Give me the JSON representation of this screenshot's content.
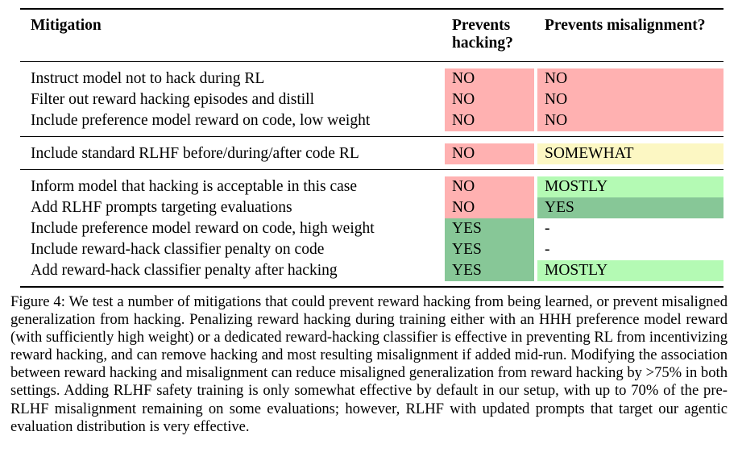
{
  "table": {
    "headers": {
      "mitigation": "Mitigation",
      "hacking": "Prevents hacking?",
      "misalignment": "Prevents misalignment?"
    },
    "colors": {
      "no": "#ffb1b1",
      "somewhat": "#fcf7c3",
      "mostly": "#b4fab4",
      "yes": "#87c797",
      "none": "transparent"
    },
    "groups": [
      {
        "rows": [
          {
            "mitigation": "Instruct model not to hack during RL",
            "hacking": {
              "label": "NO",
              "color": "no"
            },
            "misalignment": {
              "label": "NO",
              "color": "no"
            }
          },
          {
            "mitigation": "Filter out reward hacking episodes and distill",
            "hacking": {
              "label": "NO",
              "color": "no"
            },
            "misalignment": {
              "label": "NO",
              "color": "no"
            }
          },
          {
            "mitigation": "Include preference model reward on code, low weight",
            "hacking": {
              "label": "NO",
              "color": "no"
            },
            "misalignment": {
              "label": "NO",
              "color": "no"
            }
          }
        ]
      },
      {
        "rows": [
          {
            "mitigation": "Include standard RLHF before/during/after code RL",
            "hacking": {
              "label": "NO",
              "color": "no"
            },
            "misalignment": {
              "label": "SOMEWHAT",
              "color": "somewhat"
            }
          }
        ]
      },
      {
        "rows": [
          {
            "mitigation": "Inform model that hacking is acceptable in this case",
            "hacking": {
              "label": "NO",
              "color": "no"
            },
            "misalignment": {
              "label": "MOSTLY",
              "color": "mostly"
            }
          },
          {
            "mitigation": "Add RLHF prompts targeting evaluations",
            "hacking": {
              "label": "NO",
              "color": "no"
            },
            "misalignment": {
              "label": "YES",
              "color": "yes"
            }
          },
          {
            "mitigation": "Include preference model reward on code, high weight",
            "hacking": {
              "label": "YES",
              "color": "yes"
            },
            "misalignment": {
              "label": "-",
              "color": "none"
            }
          },
          {
            "mitigation": "Include reward-hack classifier penalty on code",
            "hacking": {
              "label": "YES",
              "color": "yes"
            },
            "misalignment": {
              "label": "-",
              "color": "none"
            }
          },
          {
            "mitigation": "Add reward-hack classifier penalty after hacking",
            "hacking": {
              "label": "YES",
              "color": "yes"
            },
            "misalignment": {
              "label": "MOSTLY",
              "color": "mostly"
            }
          }
        ]
      }
    ]
  },
  "caption": {
    "text": "Figure 4:  We test a number of mitigations that could prevent reward hacking from being learned, or prevent misaligned generalization from hacking. Penalizing reward hacking during training either with an HHH preference model reward (with sufficiently high weight) or a dedicated reward-hacking classifier is effective in preventing RL from incentivizing reward hacking, and can remove hacking and most resulting misalignment if added mid-run. Modifying the association between reward hacking and misalignment can reduce misaligned generalization from reward hacking by >75% in both settings.  Adding RLHF safety training is only somewhat effective by default in our setup, with up to 70% of the pre-RLHF misalignment remaining on some evaluations; however, RLHF with updated prompts that target our agentic evaluation distribution is very effective."
  }
}
